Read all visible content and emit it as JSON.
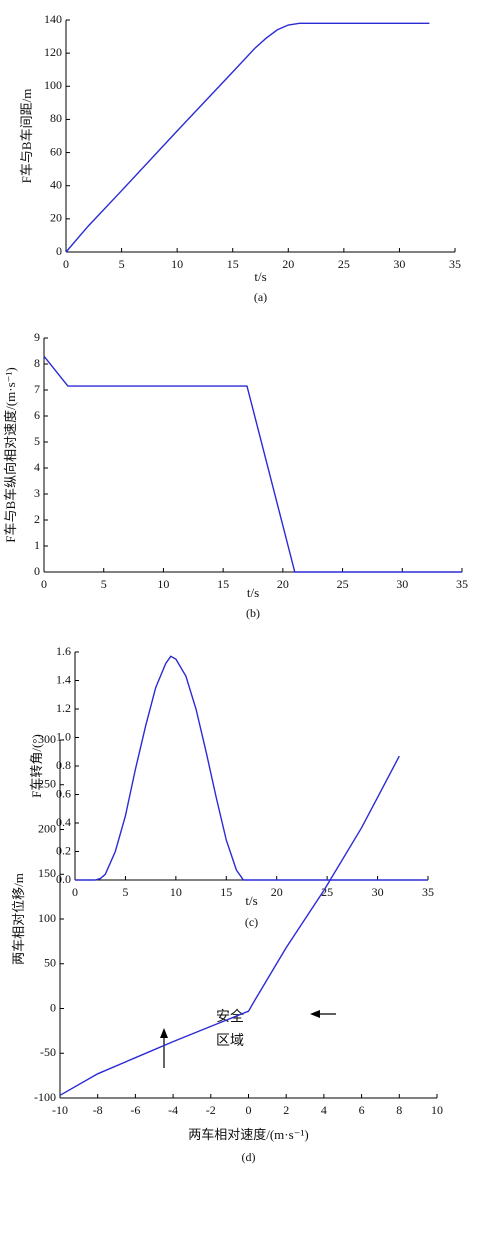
{
  "chart_data": [
    {
      "type": "line",
      "caption": "(a)",
      "x_label": "t/s",
      "y_label": "F车与B车间距/m",
      "color": "#2b2bd6",
      "x": [
        0,
        2,
        5,
        10,
        15,
        17,
        18,
        19,
        20,
        21,
        25,
        30,
        32.7
      ],
      "values": [
        0,
        15.6,
        37,
        73,
        108.6,
        123,
        129,
        134,
        137,
        138,
        138,
        138,
        138
      ],
      "xlim": [
        0,
        35
      ],
      "xticks": [
        0,
        5,
        10,
        15,
        20,
        25,
        30,
        35
      ],
      "ylim": [
        0,
        140
      ],
      "yticks": [
        0,
        20,
        40,
        60,
        80,
        100,
        120,
        140
      ]
    },
    {
      "type": "line",
      "caption": "(b)",
      "x_label": "t/s",
      "y_label": "F车与B车纵向相对速度/(m·s⁻¹)",
      "color": "#2b2bd6",
      "x": [
        0,
        2,
        17,
        21,
        35
      ],
      "values": [
        8.3,
        7.15,
        7.15,
        0,
        0
      ],
      "xlim": [
        0,
        35
      ],
      "xticks": [
        0,
        5,
        10,
        15,
        20,
        25,
        30,
        35
      ],
      "ylim": [
        0,
        9
      ],
      "yticks": [
        0,
        1,
        2,
        3,
        4,
        5,
        6,
        7,
        8,
        9
      ]
    },
    {
      "type": "line",
      "caption": "(c)",
      "x_label": "t/s",
      "y_label": "F车转角/(°)",
      "color": "#2b2bd6",
      "x": [
        0,
        2,
        2.5,
        3,
        4,
        5,
        6,
        7,
        8,
        9,
        9.5,
        10,
        11,
        12,
        13,
        14,
        15,
        16,
        16.7,
        35
      ],
      "values": [
        0,
        0,
        0.01,
        0.04,
        0.2,
        0.45,
        0.78,
        1.08,
        1.35,
        1.52,
        1.57,
        1.55,
        1.43,
        1.2,
        0.9,
        0.58,
        0.28,
        0.07,
        0,
        0
      ],
      "xlim": [
        0,
        35
      ],
      "xticks": [
        0,
        5,
        10,
        15,
        20,
        25,
        30,
        35
      ],
      "ylim": [
        0,
        1.6
      ],
      "yticks": [
        {
          "value": 0,
          "label": "0.0"
        },
        0.2,
        0.4,
        0.6,
        0.8,
        {
          "value": 1,
          "label": "1.0"
        },
        1.2,
        1.4,
        1.6
      ]
    },
    {
      "type": "line",
      "caption": "(d)",
      "x_label": "两车相对速度/(m·s⁻¹)",
      "y_label": "两车相对位移/m",
      "color": "#2b2bd6",
      "annotations": [
        "安全",
        "区域"
      ],
      "x": [
        -10,
        -8,
        -6,
        -4,
        -2,
        0,
        0.3,
        2,
        4,
        6,
        8
      ],
      "values": [
        -97,
        -73,
        -55,
        -37,
        -20,
        -3,
        8,
        68,
        132,
        202,
        282
      ],
      "xlim": [
        -10,
        10
      ],
      "xticks": [
        -10,
        -8,
        -6,
        -4,
        -2,
        0,
        2,
        4,
        6,
        8,
        10
      ],
      "ylim": [
        -100,
        300
      ],
      "yticks": [
        -100,
        -50,
        0,
        50,
        100,
        150,
        200,
        250,
        300
      ]
    }
  ]
}
